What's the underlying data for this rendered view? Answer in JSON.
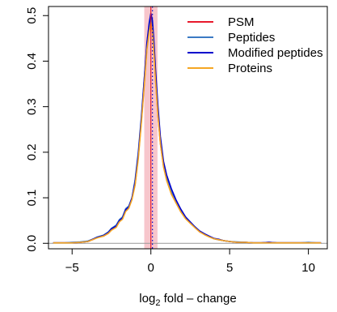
{
  "chart_data": {
    "type": "line",
    "title": "",
    "xlabel_base": "log",
    "xlabel_sub": "2",
    "xlabel_rest": " fold – change",
    "ylabel": "",
    "xlim": [
      -6.5,
      11.2
    ],
    "ylim": [
      -0.012,
      0.52
    ],
    "x_ticks": [
      -5,
      0,
      5,
      10
    ],
    "x_tick_labels": [
      "−5",
      "0",
      "5",
      "10"
    ],
    "y_ticks": [
      0.0,
      0.1,
      0.2,
      0.3,
      0.4,
      0.5
    ],
    "y_tick_labels": [
      "0.0",
      "0.1",
      "0.2",
      "0.3",
      "0.4",
      "0.5"
    ],
    "grid": false,
    "legend_position": "top-right",
    "band": {
      "x0": -0.42,
      "x1": 0.42,
      "color": "#f7c6cc"
    },
    "reference_lines": [
      {
        "x": 0.0,
        "color": "#e8192c",
        "style": "solid"
      },
      {
        "x": 0.1,
        "color": "#0000cc",
        "style": "dotted"
      },
      {
        "y": 0.0,
        "color": "#999999",
        "style": "solid"
      }
    ],
    "series": [
      {
        "name": "PSM",
        "color": "#e8192c",
        "x": [
          -6.2,
          -5.5,
          -5.0,
          -4.5,
          -4.0,
          -3.7,
          -3.4,
          -3.0,
          -2.7,
          -2.5,
          -2.2,
          -2.0,
          -1.8,
          -1.6,
          -1.4,
          -1.2,
          -1.0,
          -0.8,
          -0.6,
          -0.4,
          -0.25,
          -0.1,
          0.0,
          0.1,
          0.2,
          0.3,
          0.45,
          0.6,
          0.8,
          1.0,
          1.3,
          1.6,
          1.9,
          2.2,
          2.5,
          2.8,
          3.1,
          3.4,
          3.7,
          4.0,
          4.3,
          4.6,
          5.0,
          5.5,
          6.0,
          6.5,
          7.0,
          7.5,
          8.0,
          8.5,
          9.0,
          9.5,
          10.0,
          10.5,
          10.8
        ],
        "values": [
          0.001,
          0.001,
          0.001,
          0.002,
          0.004,
          0.008,
          0.013,
          0.016,
          0.022,
          0.03,
          0.036,
          0.048,
          0.054,
          0.072,
          0.078,
          0.098,
          0.13,
          0.19,
          0.27,
          0.36,
          0.43,
          0.47,
          0.49,
          0.47,
          0.42,
          0.36,
          0.28,
          0.22,
          0.17,
          0.14,
          0.11,
          0.09,
          0.07,
          0.055,
          0.045,
          0.035,
          0.025,
          0.02,
          0.015,
          0.01,
          0.008,
          0.006,
          0.004,
          0.002,
          0.002,
          0.001,
          0.001,
          0.002,
          0.001,
          0.001,
          0.001,
          0.001,
          0.001,
          0.001,
          0.001
        ]
      },
      {
        "name": "Peptides",
        "color": "#3b7ac4",
        "x": [
          -6.2,
          -5.5,
          -5.0,
          -4.5,
          -4.0,
          -3.7,
          -3.4,
          -3.0,
          -2.7,
          -2.5,
          -2.2,
          -2.0,
          -1.8,
          -1.6,
          -1.4,
          -1.2,
          -1.0,
          -0.8,
          -0.6,
          -0.4,
          -0.25,
          -0.1,
          0.0,
          0.1,
          0.2,
          0.3,
          0.45,
          0.6,
          0.8,
          1.0,
          1.3,
          1.6,
          1.9,
          2.2,
          2.5,
          2.8,
          3.1,
          3.4,
          3.7,
          4.0,
          4.3,
          4.6,
          5.0,
          5.5,
          6.0,
          6.5,
          7.0,
          7.5,
          8.0,
          8.5,
          9.0,
          9.5,
          10.0,
          10.5,
          10.8
        ],
        "values": [
          0.001,
          0.001,
          0.002,
          0.003,
          0.005,
          0.009,
          0.014,
          0.018,
          0.025,
          0.033,
          0.04,
          0.052,
          0.058,
          0.076,
          0.082,
          0.1,
          0.14,
          0.2,
          0.28,
          0.37,
          0.44,
          0.48,
          0.495,
          0.48,
          0.43,
          0.37,
          0.29,
          0.23,
          0.175,
          0.145,
          0.115,
          0.092,
          0.072,
          0.057,
          0.046,
          0.036,
          0.026,
          0.02,
          0.015,
          0.01,
          0.008,
          0.006,
          0.004,
          0.003,
          0.002,
          0.001,
          0.001,
          0.002,
          0.001,
          0.001,
          0.001,
          0.001,
          0.002,
          0.001,
          0.001
        ]
      },
      {
        "name": "Modified peptides",
        "color": "#0000cc",
        "x": [
          -6.2,
          -5.5,
          -5.0,
          -4.5,
          -4.0,
          -3.7,
          -3.4,
          -3.0,
          -2.7,
          -2.5,
          -2.2,
          -2.0,
          -1.8,
          -1.6,
          -1.4,
          -1.2,
          -1.0,
          -0.8,
          -0.6,
          -0.4,
          -0.25,
          -0.1,
          0.0,
          0.1,
          0.2,
          0.3,
          0.45,
          0.6,
          0.8,
          1.0,
          1.3,
          1.6,
          1.9,
          2.2,
          2.5,
          2.8,
          3.1,
          3.4,
          3.7,
          4.0,
          4.3,
          4.6,
          5.0,
          5.5,
          6.0,
          6.5,
          7.0,
          7.5,
          8.0,
          8.5,
          9.0,
          9.5,
          10.0,
          10.5,
          10.8
        ],
        "values": [
          0.001,
          0.001,
          0.001,
          0.002,
          0.004,
          0.009,
          0.013,
          0.017,
          0.024,
          0.032,
          0.038,
          0.05,
          0.056,
          0.074,
          0.08,
          0.1,
          0.135,
          0.195,
          0.275,
          0.37,
          0.44,
          0.485,
          0.505,
          0.49,
          0.44,
          0.38,
          0.3,
          0.235,
          0.18,
          0.15,
          0.12,
          0.095,
          0.075,
          0.058,
          0.047,
          0.036,
          0.027,
          0.021,
          0.016,
          0.011,
          0.009,
          0.006,
          0.004,
          0.002,
          0.002,
          0.001,
          0.001,
          0.002,
          0.001,
          0.001,
          0.001,
          0.001,
          0.001,
          0.001,
          0.001
        ]
      },
      {
        "name": "Proteins",
        "color": "#f5a623",
        "x": [
          -6.2,
          -5.5,
          -5.0,
          -4.5,
          -4.0,
          -3.7,
          -3.4,
          -3.0,
          -2.7,
          -2.5,
          -2.2,
          -2.0,
          -1.8,
          -1.6,
          -1.4,
          -1.2,
          -1.0,
          -0.8,
          -0.6,
          -0.4,
          -0.25,
          -0.1,
          0.0,
          0.1,
          0.2,
          0.3,
          0.45,
          0.6,
          0.8,
          1.0,
          1.3,
          1.6,
          1.9,
          2.2,
          2.5,
          2.8,
          3.1,
          3.4,
          3.7,
          4.0,
          4.3,
          4.6,
          5.0,
          5.5,
          6.0,
          6.5,
          7.0,
          7.5,
          8.0,
          8.5,
          9.0,
          9.5,
          10.0,
          10.5,
          10.8
        ],
        "values": [
          0.001,
          0.001,
          0.001,
          0.002,
          0.004,
          0.008,
          0.012,
          0.016,
          0.022,
          0.029,
          0.035,
          0.047,
          0.053,
          0.07,
          0.077,
          0.096,
          0.128,
          0.185,
          0.265,
          0.355,
          0.425,
          0.465,
          0.485,
          0.465,
          0.415,
          0.355,
          0.28,
          0.22,
          0.168,
          0.138,
          0.108,
          0.088,
          0.069,
          0.054,
          0.044,
          0.034,
          0.025,
          0.019,
          0.014,
          0.01,
          0.008,
          0.006,
          0.004,
          0.002,
          0.002,
          0.001,
          0.001,
          0.001,
          0.001,
          0.001,
          0.001,
          0.001,
          0.001,
          0.001,
          0.001
        ]
      }
    ]
  }
}
